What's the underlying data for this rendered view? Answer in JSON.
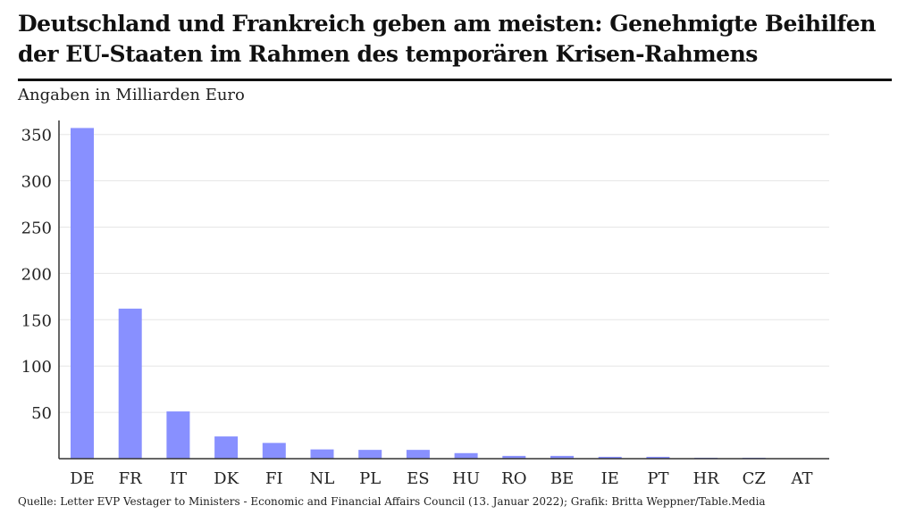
{
  "chart_data": {
    "type": "bar",
    "title": "Deutschland und Frankreich geben am meisten: Genehmigte Beihilfen der EU-Staaten im Rahmen des temporären Krisen-Rahmens",
    "subtitle": "Angaben in Milliarden Euro",
    "source": "Quelle: Letter EVP Vestager to Ministers - Economic and Financial Affairs Council (13. Januar 2022); Grafik: Britta Weppner/Table.Media",
    "categories": [
      "DE",
      "FR",
      "IT",
      "DK",
      "FI",
      "NL",
      "PL",
      "ES",
      "HU",
      "RO",
      "BE",
      "IE",
      "PT",
      "HR",
      "CZ",
      "AT"
    ],
    "values": [
      357,
      162,
      51,
      24,
      17,
      10,
      9.5,
      9.5,
      6,
      3,
      3,
      2,
      2,
      1,
      1,
      0.5
    ],
    "ylim": [
      0,
      370
    ],
    "yticks": [
      50,
      100,
      150,
      200,
      250,
      300,
      350
    ],
    "xlabel": "",
    "ylabel": "",
    "grid": true,
    "bar_color": "#8890ff"
  }
}
